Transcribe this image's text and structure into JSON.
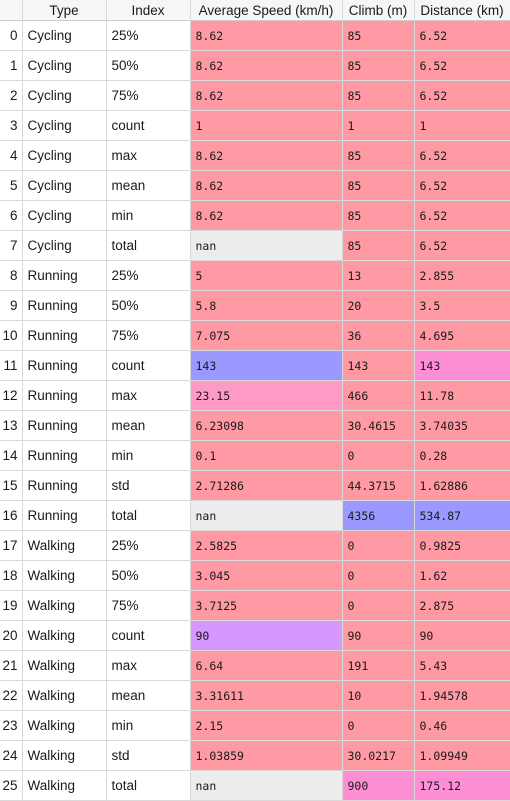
{
  "headers": [
    "",
    "Type",
    "Index",
    "Average Speed (km/h)",
    "Climb (m)",
    "Distance (km)"
  ],
  "colors": {
    "base": "#ff99a3",
    "pink": "#ff9ac4",
    "magenta": "#ff8fd5",
    "blue": "#9b99ff",
    "violet": "#d698ff",
    "nan": "#ececec"
  },
  "rows": [
    {
      "i": "0",
      "type": "Cycling",
      "index": "25%",
      "speed": "8.62",
      "climb": "85",
      "distance": "6.52"
    },
    {
      "i": "1",
      "type": "Cycling",
      "index": "50%",
      "speed": "8.62",
      "climb": "85",
      "distance": "6.52"
    },
    {
      "i": "2",
      "type": "Cycling",
      "index": "75%",
      "speed": "8.62",
      "climb": "85",
      "distance": "6.52"
    },
    {
      "i": "3",
      "type": "Cycling",
      "index": "count",
      "speed": "1",
      "climb": "1",
      "distance": "1"
    },
    {
      "i": "4",
      "type": "Cycling",
      "index": "max",
      "speed": "8.62",
      "climb": "85",
      "distance": "6.52"
    },
    {
      "i": "5",
      "type": "Cycling",
      "index": "mean",
      "speed": "8.62",
      "climb": "85",
      "distance": "6.52"
    },
    {
      "i": "6",
      "type": "Cycling",
      "index": "min",
      "speed": "8.62",
      "climb": "85",
      "distance": "6.52"
    },
    {
      "i": "7",
      "type": "Cycling",
      "index": "total",
      "speed": "nan",
      "climb": "85",
      "distance": "6.52",
      "speed_color": "nan"
    },
    {
      "i": "8",
      "type": "Running",
      "index": "25%",
      "speed": "5",
      "climb": "13",
      "distance": "2.855"
    },
    {
      "i": "9",
      "type": "Running",
      "index": "50%",
      "speed": "5.8",
      "climb": "20",
      "distance": "3.5"
    },
    {
      "i": "10",
      "type": "Running",
      "index": "75%",
      "speed": "7.075",
      "climb": "36",
      "distance": "4.695"
    },
    {
      "i": "11",
      "type": "Running",
      "index": "count",
      "speed": "143",
      "climb": "143",
      "distance": "143",
      "speed_color": "blue",
      "distance_color": "magenta"
    },
    {
      "i": "12",
      "type": "Running",
      "index": "max",
      "speed": "23.15",
      "climb": "466",
      "distance": "11.78",
      "speed_color": "pink"
    },
    {
      "i": "13",
      "type": "Running",
      "index": "mean",
      "speed": "6.23098",
      "climb": "30.4615",
      "distance": "3.74035"
    },
    {
      "i": "14",
      "type": "Running",
      "index": "min",
      "speed": "0.1",
      "climb": "0",
      "distance": "0.28"
    },
    {
      "i": "15",
      "type": "Running",
      "index": "std",
      "speed": "2.71286",
      "climb": "44.3715",
      "distance": "1.62886"
    },
    {
      "i": "16",
      "type": "Running",
      "index": "total",
      "speed": "nan",
      "climb": "4356",
      "distance": "534.87",
      "speed_color": "nan",
      "climb_color": "blue",
      "distance_color": "blue"
    },
    {
      "i": "17",
      "type": "Walking",
      "index": "25%",
      "speed": "2.5825",
      "climb": "0",
      "distance": "0.9825"
    },
    {
      "i": "18",
      "type": "Walking",
      "index": "50%",
      "speed": "3.045",
      "climb": "0",
      "distance": "1.62"
    },
    {
      "i": "19",
      "type": "Walking",
      "index": "75%",
      "speed": "3.7125",
      "climb": "0",
      "distance": "2.875"
    },
    {
      "i": "20",
      "type": "Walking",
      "index": "count",
      "speed": "90",
      "climb": "90",
      "distance": "90",
      "speed_color": "violet"
    },
    {
      "i": "21",
      "type": "Walking",
      "index": "max",
      "speed": "6.64",
      "climb": "191",
      "distance": "5.43"
    },
    {
      "i": "22",
      "type": "Walking",
      "index": "mean",
      "speed": "3.31611",
      "climb": "10",
      "distance": "1.94578"
    },
    {
      "i": "23",
      "type": "Walking",
      "index": "min",
      "speed": "2.15",
      "climb": "0",
      "distance": "0.46"
    },
    {
      "i": "24",
      "type": "Walking",
      "index": "std",
      "speed": "1.03859",
      "climb": "30.0217",
      "distance": "1.09949"
    },
    {
      "i": "25",
      "type": "Walking",
      "index": "total",
      "speed": "nan",
      "climb": "900",
      "distance": "175.12",
      "speed_color": "nan",
      "climb_color": "magenta",
      "distance_color": "magenta"
    }
  ]
}
